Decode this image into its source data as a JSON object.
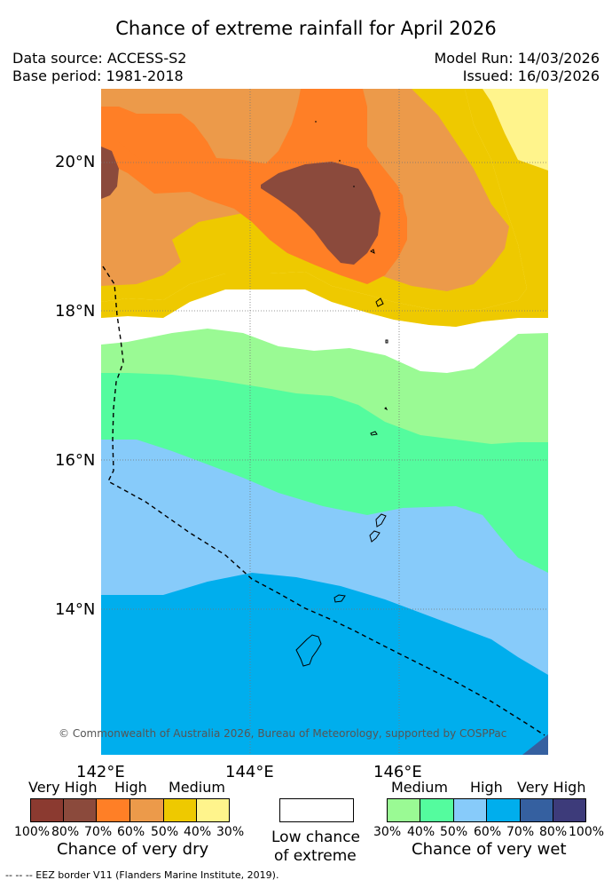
{
  "title": "Chance of extreme rainfall for April 2026",
  "data_source": "Data source: ACCESS-S2",
  "base_period": "Base period: 1981-2018",
  "model_run": "Model Run: 14/03/2026",
  "issued": "Issued: 16/03/2026",
  "lat_labels": [
    "20°N",
    "18°N",
    "16°N",
    "14°N"
  ],
  "lon_labels": [
    "142°E",
    "144°E",
    "146°E"
  ],
  "copyright": "© Commonwealth of Australia 2026, Bureau of Meteorology, supported by COSPPac",
  "legend": {
    "dry": {
      "levels": [
        "Very High",
        "High",
        "Medium"
      ],
      "percentages": [
        "100%",
        "80%",
        "70%",
        "60%",
        "50%",
        "40%",
        "30%"
      ],
      "colors": [
        "#8b3a30",
        "#8b4a3c",
        "#ff7f26",
        "#ec9a4a",
        "#eec900",
        "#fff48c"
      ],
      "caption": "Chance of very dry"
    },
    "low": {
      "caption_line1": "Low chance",
      "caption_line2": "of extreme",
      "color": "#ffffff"
    },
    "wet": {
      "levels": [
        "Medium",
        "High",
        "Very High"
      ],
      "percentages": [
        "30%",
        "40%",
        "50%",
        "60%",
        "70%",
        "80%",
        "100%"
      ],
      "colors": [
        "#9afa94",
        "#54fc9e",
        "#87cbfa",
        "#00aeed",
        "#3560a0",
        "#3d3b7a"
      ],
      "caption": "Chance of very wet"
    }
  },
  "footer": "--  --  -- EEZ border V11 (Flanders Marine Institute, 2019)."
}
